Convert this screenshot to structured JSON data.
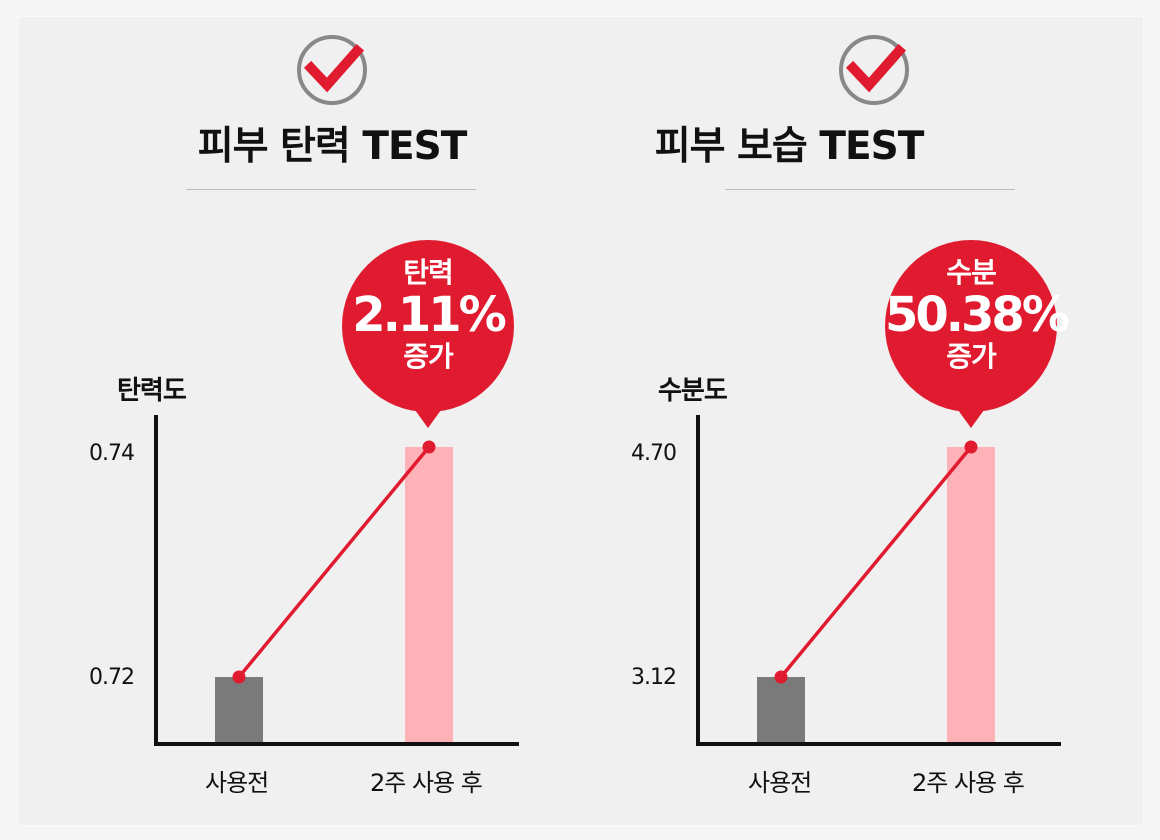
{
  "colors": {
    "background": "#f0f0f0",
    "accent": "#e11b2f",
    "bar_before": "#7a7a7a",
    "bar_after": "#ffb1b8",
    "axis": "#111111",
    "check_ring": "#888888"
  },
  "panels": [
    {
      "icon": "checkmark-icon",
      "title": "피부 탄력 TEST",
      "callout": {
        "label": "탄력",
        "value": "2.11%",
        "suffix": "증가"
      }
    },
    {
      "icon": "checkmark-icon",
      "title": "피부 보습 TEST",
      "callout": {
        "label": "수분",
        "value": "50.38%",
        "suffix": "증가"
      }
    }
  ],
  "chart_data": [
    {
      "type": "bar",
      "title": "피부 탄력 TEST",
      "ylabel": "탄력도",
      "categories": [
        "사용전",
        "2주 사용 후"
      ],
      "values": [
        0.72,
        0.74
      ],
      "ticks": [
        "0.74",
        "0.72"
      ],
      "annotation": "탄력 2.11% 증가",
      "trend_line": true
    },
    {
      "type": "bar",
      "title": "피부 보습 TEST",
      "ylabel": "수분도",
      "categories": [
        "사용전",
        "2주 사용 후"
      ],
      "values": [
        3.12,
        4.7
      ],
      "ticks": [
        "4.70",
        "3.12"
      ],
      "annotation": "수분 50.38% 증가",
      "trend_line": true
    }
  ]
}
